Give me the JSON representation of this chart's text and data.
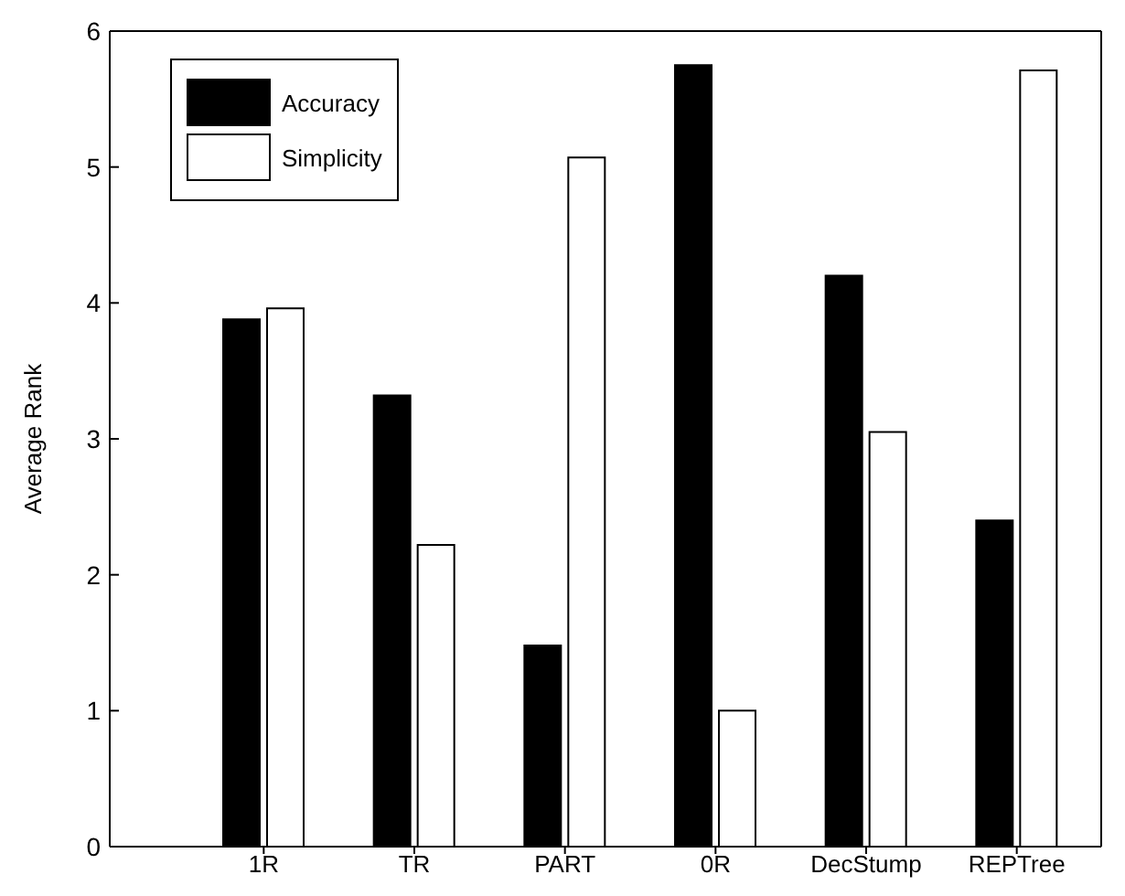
{
  "chart_data": {
    "type": "bar",
    "ylabel": "Average Rank",
    "categories": [
      "1R",
      "TR",
      "PART",
      "0R",
      "DecStump",
      "REPTree"
    ],
    "series": [
      {
        "name": "Accuracy",
        "color": "#000000",
        "values": [
          3.88,
          3.32,
          1.48,
          5.75,
          4.2,
          2.4
        ]
      },
      {
        "name": "Simplicity",
        "color": "#ffffff",
        "values": [
          3.96,
          2.22,
          5.07,
          1.0,
          3.05,
          5.71
        ]
      }
    ],
    "ylim": [
      0,
      6
    ],
    "yticks": [
      0,
      1,
      2,
      3,
      4,
      5,
      6
    ],
    "grid": false,
    "legend": "top left"
  }
}
